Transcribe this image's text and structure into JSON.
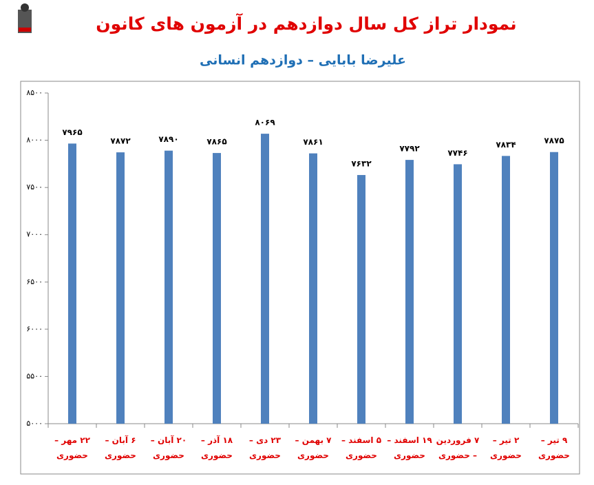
{
  "chart_data": {
    "type": "bar",
    "title": "نمودار تراز کل سال دوازدهم در آزمون های کانون",
    "subtitle": "علیرضا بابایی – دوازدهم انسانی",
    "categories": [
      "۲۲ مهر – حضوری",
      "۶ آبان – حضوری",
      "۲۰ آبان – حضوری",
      "۱۸ آذر – حضوری",
      "۲۳ دی – حضوری",
      "۷ بهمن – حضوری",
      "۵ اسفند – حضوری",
      "۱۹ اسفند – حضوری",
      "۷ فروردین – حضوری",
      "۲ تیر – حضوری",
      "۹ تیر – حضوری"
    ],
    "values": [
      7965,
      7872,
      7890,
      7865,
      8069,
      7861,
      7632,
      7792,
      7746,
      7834,
      7875
    ],
    "value_labels": [
      "۷۹۶۵",
      "۷۸۷۲",
      "۷۸۹۰",
      "۷۸۶۵",
      "۸۰۶۹",
      "۷۸۶۱",
      "۷۶۳۲",
      "۷۷۹۲",
      "۷۷۴۶",
      "۷۸۳۴",
      "۷۸۷۵"
    ],
    "color": "#4f81bd",
    "ylim": [
      5000,
      8500
    ],
    "yticks": [
      {
        "value": 5000,
        "label": "۵۰۰۰"
      },
      {
        "value": 5500,
        "label": "۵۵۰۰"
      },
      {
        "value": 6000,
        "label": "۶۰۰۰"
      },
      {
        "value": 6500,
        "label": "۶۵۰۰"
      },
      {
        "value": 7000,
        "label": "۷۰۰۰"
      },
      {
        "value": 7500,
        "label": "۷۵۰۰"
      },
      {
        "value": 8000,
        "label": "۸۰۰۰"
      },
      {
        "value": 8500,
        "label": "۸۵۰۰"
      }
    ]
  }
}
